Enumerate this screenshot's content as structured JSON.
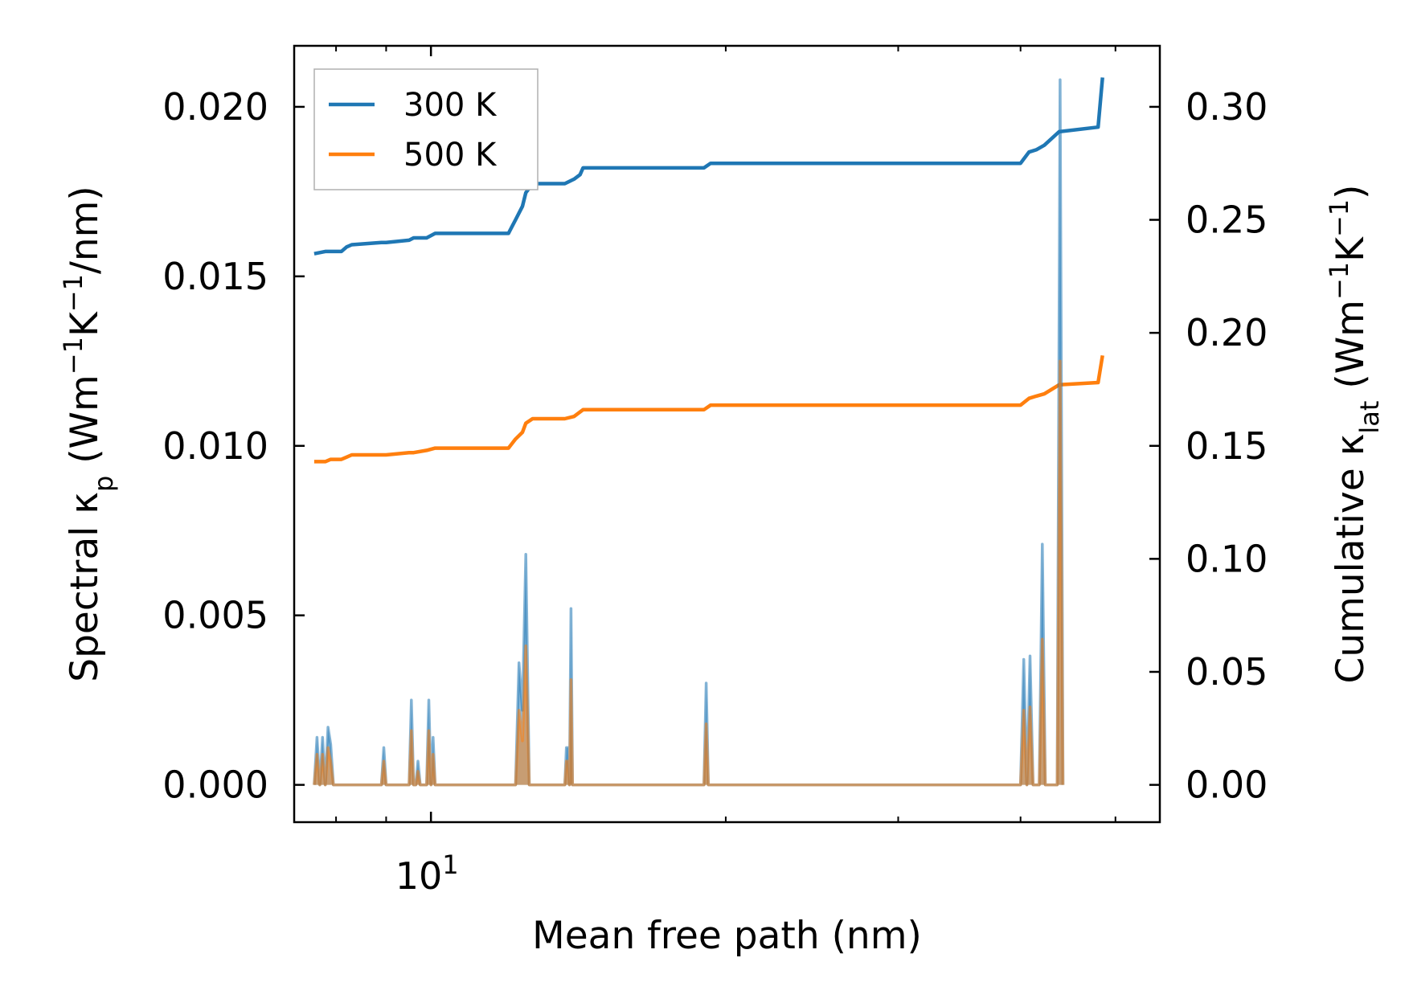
{
  "chart_data": {
    "type": "line",
    "xlabel": "Mean free path (nm)",
    "xscale": "log",
    "xlim": [
      7.25,
      55.5
    ],
    "x_ticks": [
      {
        "value": 10,
        "label": "10",
        "exponent": "1"
      }
    ],
    "x_minor_ticks": [
      8,
      9,
      20,
      30,
      40,
      50
    ],
    "ylabel_left": {
      "prefix": "Spectral κ",
      "sub": "p",
      "suffix": " (Wm",
      "sup1": "−1",
      "mid": "K",
      "sup2": "−1",
      "end": "/nm)"
    },
    "ylabel_right": {
      "prefix": "Cumulative κ",
      "sub": "lat",
      "suffix": " (Wm",
      "sup1": "−1",
      "mid": "K",
      "sup2": "−1",
      "end": ")"
    },
    "ylim_left": [
      -0.0011,
      0.0218
    ],
    "ylim_right": [
      -0.0165,
      0.327
    ],
    "y_ticks_left": [
      "0.000",
      "0.005",
      "0.010",
      "0.015",
      "0.020"
    ],
    "y_ticks_right": [
      "0.00",
      "0.05",
      "0.10",
      "0.15",
      "0.20",
      "0.25",
      "0.30"
    ],
    "legend": {
      "position": "upper left",
      "entries": [
        {
          "label": "300 K",
          "color": "#1f77b4"
        },
        {
          "label": "500 K",
          "color": "#ff7f0e"
        }
      ]
    },
    "grid": false,
    "series": [
      {
        "name": "300 K cumulative",
        "axis": "right",
        "color": "#1f77b4",
        "x": [
          7.6,
          7.8,
          7.9,
          8.1,
          8.2,
          8.3,
          8.9,
          9.0,
          9.5,
          9.6,
          9.9,
          10.1,
          10.3,
          12.0,
          12.2,
          12.4,
          12.5,
          12.7,
          13.7,
          14.0,
          14.2,
          14.3,
          19.0,
          19.3,
          40.0,
          40.8,
          41.5,
          42.3,
          43.8,
          48.0,
          48.5
        ],
        "values": [
          0.235,
          0.236,
          0.236,
          0.236,
          0.238,
          0.239,
          0.24,
          0.24,
          0.241,
          0.242,
          0.242,
          0.244,
          0.244,
          0.244,
          0.25,
          0.256,
          0.262,
          0.266,
          0.266,
          0.268,
          0.27,
          0.273,
          0.273,
          0.275,
          0.275,
          0.28,
          0.281,
          0.283,
          0.289,
          0.291,
          0.313
        ]
      },
      {
        "name": "500 K cumulative",
        "axis": "right",
        "color": "#ff7f0e",
        "x": [
          7.6,
          7.8,
          7.9,
          8.1,
          8.2,
          8.3,
          8.9,
          9.0,
          9.5,
          9.6,
          9.9,
          10.1,
          10.3,
          12.0,
          12.2,
          12.4,
          12.5,
          12.7,
          13.7,
          14.0,
          14.2,
          14.3,
          19.0,
          19.3,
          40.0,
          40.8,
          41.5,
          42.3,
          43.8,
          48.0,
          48.5
        ],
        "values": [
          0.143,
          0.143,
          0.144,
          0.144,
          0.145,
          0.146,
          0.146,
          0.146,
          0.147,
          0.147,
          0.148,
          0.149,
          0.149,
          0.149,
          0.153,
          0.156,
          0.16,
          0.162,
          0.162,
          0.163,
          0.165,
          0.166,
          0.166,
          0.168,
          0.168,
          0.171,
          0.172,
          0.173,
          0.177,
          0.178,
          0.19
        ]
      },
      {
        "name": "300 K spectral",
        "axis": "left",
        "color": "#1f77b4",
        "x": [
          7.6,
          7.65,
          7.7,
          7.75,
          7.8,
          7.85,
          7.9,
          7.95,
          8.0,
          8.05,
          8.1,
          8.9,
          8.95,
          9.0,
          9.5,
          9.55,
          9.6,
          9.65,
          9.7,
          9.75,
          9.8,
          9.85,
          9.9,
          9.95,
          10.0,
          10.05,
          10.1,
          10.15,
          10.2,
          12.2,
          12.3,
          12.4,
          12.5,
          12.6,
          12.7,
          12.8,
          13.7,
          13.75,
          13.8,
          13.85,
          13.9,
          13.95,
          14.0,
          14.05,
          14.1,
          19.0,
          19.1,
          19.2,
          40.0,
          40.3,
          40.6,
          40.9,
          41.2,
          41.8,
          42.1,
          42.4,
          42.7,
          43.0,
          43.3,
          43.6,
          43.9,
          44.2
        ],
        "values": [
          0.0,
          0.0014,
          0.0,
          0.0014,
          0.0,
          0.0017,
          0.0012,
          0.0,
          0.0,
          0.0,
          0.0,
          0.0,
          0.0011,
          0.0,
          0.0,
          0.0025,
          0.0,
          0.0,
          0.0007,
          0.0,
          0.0,
          0.0,
          0.0,
          0.0025,
          0.0,
          0.0014,
          0.0,
          0.0,
          0.0,
          0.0,
          0.0036,
          0.0022,
          0.0068,
          0.0,
          0.0,
          0.0,
          0.0,
          0.0011,
          0.0011,
          0.0,
          0.0052,
          0.0,
          0.0,
          0.0,
          0.0,
          0.0,
          0.003,
          0.0,
          0.0,
          0.0037,
          0.0,
          0.0038,
          0.0,
          0.0,
          0.0071,
          0.0,
          0.0,
          0.0,
          0.0,
          0.0,
          0.0208,
          0.0
        ]
      },
      {
        "name": "500 K spectral",
        "axis": "left",
        "color": "#ff7f0e",
        "x": [
          7.6,
          7.65,
          7.7,
          7.75,
          7.8,
          7.85,
          7.9,
          7.95,
          8.0,
          8.05,
          8.1,
          8.9,
          8.95,
          9.0,
          9.5,
          9.55,
          9.6,
          9.65,
          9.7,
          9.75,
          9.8,
          9.85,
          9.9,
          9.95,
          10.0,
          10.05,
          10.1,
          10.15,
          10.2,
          12.2,
          12.3,
          12.4,
          12.5,
          12.6,
          12.7,
          12.8,
          13.7,
          13.75,
          13.8,
          13.85,
          13.9,
          13.95,
          14.0,
          14.05,
          14.1,
          19.0,
          19.1,
          19.2,
          40.0,
          40.3,
          40.6,
          40.9,
          41.2,
          41.8,
          42.1,
          42.4,
          42.7,
          43.0,
          43.3,
          43.6,
          43.9,
          44.2
        ],
        "values": [
          0.0,
          0.0009,
          0.0,
          0.0009,
          0.0,
          0.0011,
          0.0007,
          0.0,
          0.0,
          0.0,
          0.0,
          0.0,
          0.0007,
          0.0,
          0.0,
          0.0016,
          0.0,
          0.0,
          0.0004,
          0.0,
          0.0,
          0.0,
          0.0,
          0.0016,
          0.0,
          0.0009,
          0.0,
          0.0,
          0.0,
          0.0,
          0.0022,
          0.0013,
          0.0041,
          0.0,
          0.0,
          0.0,
          0.0,
          0.0007,
          0.0007,
          0.0,
          0.0031,
          0.0,
          0.0,
          0.0,
          0.0,
          0.0,
          0.0018,
          0.0,
          0.0,
          0.0022,
          0.0,
          0.0023,
          0.0,
          0.0,
          0.0043,
          0.0,
          0.0,
          0.0,
          0.0,
          0.0,
          0.0125,
          0.0
        ]
      }
    ]
  }
}
